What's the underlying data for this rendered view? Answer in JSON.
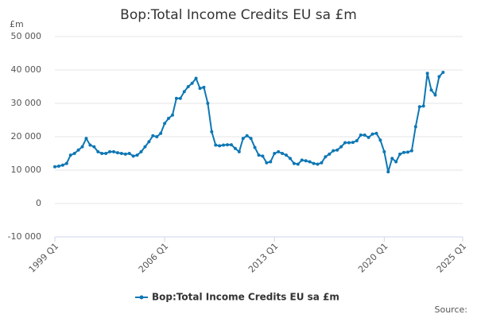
{
  "chart_data": {
    "type": "line",
    "title": "Bop:Total Income Credits EU sa £m",
    "y_label": "£m",
    "source": "Source:",
    "x": [
      1999,
      1999.25,
      1999.5,
      1999.75,
      2000,
      2000.25,
      2000.5,
      2000.75,
      2001,
      2001.25,
      2001.5,
      2001.75,
      2002,
      2002.25,
      2002.5,
      2002.75,
      2003,
      2003.25,
      2003.5,
      2003.75,
      2004,
      2004.25,
      2004.5,
      2004.75,
      2005,
      2005.25,
      2005.5,
      2005.75,
      2006,
      2006.25,
      2006.5,
      2006.75,
      2007,
      2007.25,
      2007.5,
      2007.75,
      2008,
      2008.25,
      2008.5,
      2008.75,
      2009,
      2009.25,
      2009.5,
      2009.75,
      2010,
      2010.25,
      2010.5,
      2010.75,
      2011,
      2011.25,
      2011.5,
      2011.75,
      2012,
      2012.25,
      2012.5,
      2012.75,
      2013,
      2013.25,
      2013.5,
      2013.75,
      2014,
      2014.25,
      2014.5,
      2014.75,
      2015,
      2015.25,
      2015.5,
      2015.75,
      2016,
      2016.25,
      2016.5,
      2016.75,
      2017,
      2017.25,
      2017.5,
      2017.75,
      2018,
      2018.25,
      2018.5,
      2018.75,
      2019,
      2019.25,
      2019.5,
      2019.75,
      2020,
      2020.25,
      2020.5,
      2020.75,
      2021,
      2021.25,
      2021.5,
      2021.75,
      2022,
      2022.25,
      2022.5,
      2022.75,
      2023,
      2023.25,
      2023.5,
      2023.75
    ],
    "series": [
      {
        "name": "Bop:Total Income Credits EU sa £m",
        "color": "#0e77b4",
        "values": [
          11000,
          11200,
          11500,
          12000,
          14500,
          15000,
          16000,
          17000,
          19500,
          17500,
          17000,
          15500,
          15000,
          15000,
          15500,
          15500,
          15200,
          15000,
          14800,
          15000,
          14200,
          14500,
          15500,
          17000,
          18500,
          20300,
          20000,
          21000,
          24000,
          25500,
          26500,
          31500,
          31500,
          33500,
          35000,
          36000,
          37500,
          34500,
          34800,
          30000,
          21500,
          17500,
          17300,
          17500,
          17600,
          17600,
          16500,
          15500,
          19500,
          20300,
          19500,
          16800,
          14500,
          14200,
          12200,
          12500,
          15000,
          15500,
          15000,
          14500,
          13500,
          12000,
          11800,
          13000,
          12800,
          12500,
          12000,
          11800,
          12200,
          14000,
          14800,
          15800,
          16000,
          17000,
          18200,
          18200,
          18300,
          18800,
          20500,
          20500,
          19800,
          20800,
          21000,
          19000,
          15500,
          9500,
          13500,
          12500,
          14800,
          15300,
          15400,
          15800,
          23000,
          29000,
          29200,
          39000,
          34000,
          32500,
          38000,
          39300
        ]
      }
    ],
    "xlim": [
      1999,
      2025
    ],
    "xticks": [
      {
        "value": 1999,
        "label": "1999 Q1"
      },
      {
        "value": 2006,
        "label": "2006 Q1"
      },
      {
        "value": 2013,
        "label": "2013 Q1"
      },
      {
        "value": 2020,
        "label": "2020 Q1"
      },
      {
        "value": 2025,
        "label": "2025 Q1"
      }
    ],
    "ylim": [
      -10000,
      50000
    ],
    "yticks": [
      {
        "value": -10000,
        "label": "-10 000"
      },
      0,
      {
        "value": 10000,
        "label": "10 000"
      },
      {
        "value": 20000,
        "label": "20 000"
      },
      {
        "value": 30000,
        "label": "30 000"
      },
      {
        "value": 40000,
        "label": "40 000"
      },
      {
        "value": 50000,
        "label": "50 000"
      }
    ],
    "grid": true
  }
}
